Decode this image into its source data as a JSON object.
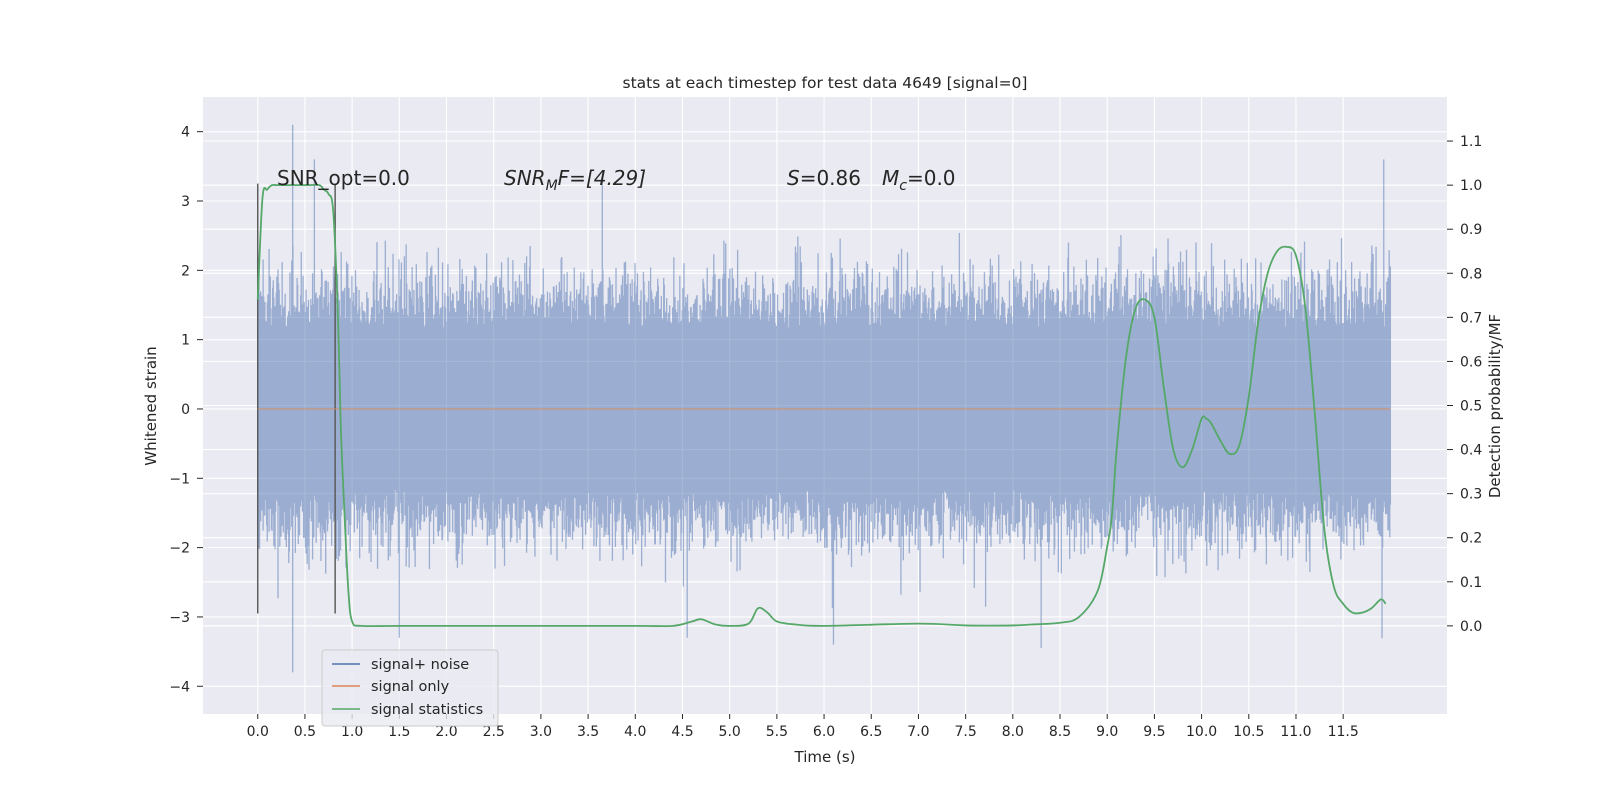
{
  "chart_data": {
    "type": "line",
    "title": "stats at each timestep for test data 4649 [signal=0]",
    "xlabel": "Time (s)",
    "ylabel_left": "Whitened strain",
    "ylabel_right": "Detection probability/MF",
    "xlim": [
      -0.58,
      12.6
    ],
    "ylim_left": [
      -4.4,
      4.5
    ],
    "ylim_right": [
      -0.2,
      1.2
    ],
    "x_ticks": [
      0.0,
      0.5,
      1.0,
      1.5,
      2.0,
      2.5,
      3.0,
      3.5,
      4.0,
      4.5,
      5.0,
      5.5,
      6.0,
      6.5,
      7.0,
      7.5,
      8.0,
      8.5,
      9.0,
      9.5,
      10.0,
      10.5,
      11.0,
      11.5
    ],
    "x_tick_labels": [
      "0.0",
      "0.5",
      "1.0",
      "1.5",
      "2.0",
      "2.5",
      "3.0",
      "3.5",
      "4.0",
      "4.5",
      "5.0",
      "5.5",
      "6.0",
      "6.5",
      "7.0",
      "7.5",
      "8.0",
      "8.5",
      "9.0",
      "9.5",
      "10.0",
      "10.5",
      "11.0",
      "11.5"
    ],
    "y_left_ticks": [
      -4,
      -3,
      -2,
      -1,
      0,
      1,
      2,
      3,
      4
    ],
    "y_left_tick_labels": [
      "−4",
      "−3",
      "−2",
      "−1",
      "0",
      "1",
      "2",
      "3",
      "4"
    ],
    "y_right_ticks": [
      0.0,
      0.1,
      0.2,
      0.3,
      0.4,
      0.5,
      0.6,
      0.7,
      0.8,
      0.9,
      1.0,
      1.1
    ],
    "y_right_tick_labels": [
      "0.0",
      "0.1",
      "0.2",
      "0.3",
      "0.4",
      "0.5",
      "0.6",
      "0.7",
      "0.8",
      "0.9",
      "1.0",
      "1.1"
    ],
    "grid": true,
    "legend_position": "lower-left",
    "series": [
      {
        "name": "signal+ noise",
        "axis": "left",
        "color": "#4c72b0",
        "description_type": "dense noise band",
        "x_range": [
          0.0,
          12.0
        ],
        "core_amplitude": 1.4,
        "peak_min": -3.8,
        "peak_max": 4.1
      },
      {
        "name": "signal only",
        "axis": "left",
        "color": "#dd8452",
        "x": [
          0.0,
          12.0
        ],
        "y": [
          0.0,
          0.0
        ]
      },
      {
        "name": "signal statistics",
        "axis": "right",
        "color": "#55a868",
        "x": [
          0.0,
          0.05,
          0.1,
          0.15,
          0.2,
          0.3,
          0.5,
          0.65,
          0.7,
          0.75,
          0.8,
          0.85,
          0.88,
          0.92,
          0.96,
          1.0,
          1.1,
          1.5,
          2.0,
          3.0,
          4.0,
          4.4,
          4.6,
          4.7,
          4.85,
          5.0,
          5.2,
          5.3,
          5.4,
          5.5,
          5.7,
          6.0,
          7.0,
          7.5,
          8.0,
          8.2,
          8.5,
          8.7,
          8.9,
          9.0,
          9.05,
          9.1,
          9.2,
          9.3,
          9.4,
          9.5,
          9.6,
          9.7,
          9.8,
          9.9,
          10.0,
          10.05,
          10.1,
          10.2,
          10.3,
          10.4,
          10.5,
          10.6,
          10.7,
          10.8,
          10.9,
          11.0,
          11.1,
          11.2,
          11.3,
          11.4,
          11.5,
          11.6,
          11.7,
          11.8,
          11.9,
          11.95
        ],
        "y": [
          0.74,
          0.97,
          0.99,
          1.0,
          1.0,
          1.0,
          1.0,
          1.0,
          0.99,
          0.98,
          0.94,
          0.7,
          0.45,
          0.25,
          0.08,
          0.01,
          0.0,
          0.0,
          0.0,
          0.0,
          0.0,
          0.0,
          0.01,
          0.015,
          0.003,
          0.0,
          0.005,
          0.04,
          0.03,
          0.01,
          0.003,
          0.0,
          0.005,
          0.001,
          0.001,
          0.003,
          0.007,
          0.02,
          0.08,
          0.18,
          0.25,
          0.4,
          0.61,
          0.72,
          0.74,
          0.7,
          0.54,
          0.4,
          0.36,
          0.4,
          0.47,
          0.47,
          0.46,
          0.42,
          0.39,
          0.41,
          0.52,
          0.69,
          0.8,
          0.85,
          0.86,
          0.84,
          0.72,
          0.48,
          0.22,
          0.09,
          0.05,
          0.03,
          0.03,
          0.04,
          0.06,
          0.05
        ]
      }
    ],
    "annotations": {
      "snr_opt": "SNR_opt=0.0",
      "snr_mf_main": "SNR",
      "snr_mf_sub": "M",
      "snr_mf_tail": "F=[4.29]",
      "s_main": "S",
      "s_tail": "=0.86",
      "mc_main": "M",
      "mc_sub": "c",
      "mc_tail": "=0.0"
    },
    "vertical_markers_x": [
      0.0,
      0.82
    ]
  }
}
